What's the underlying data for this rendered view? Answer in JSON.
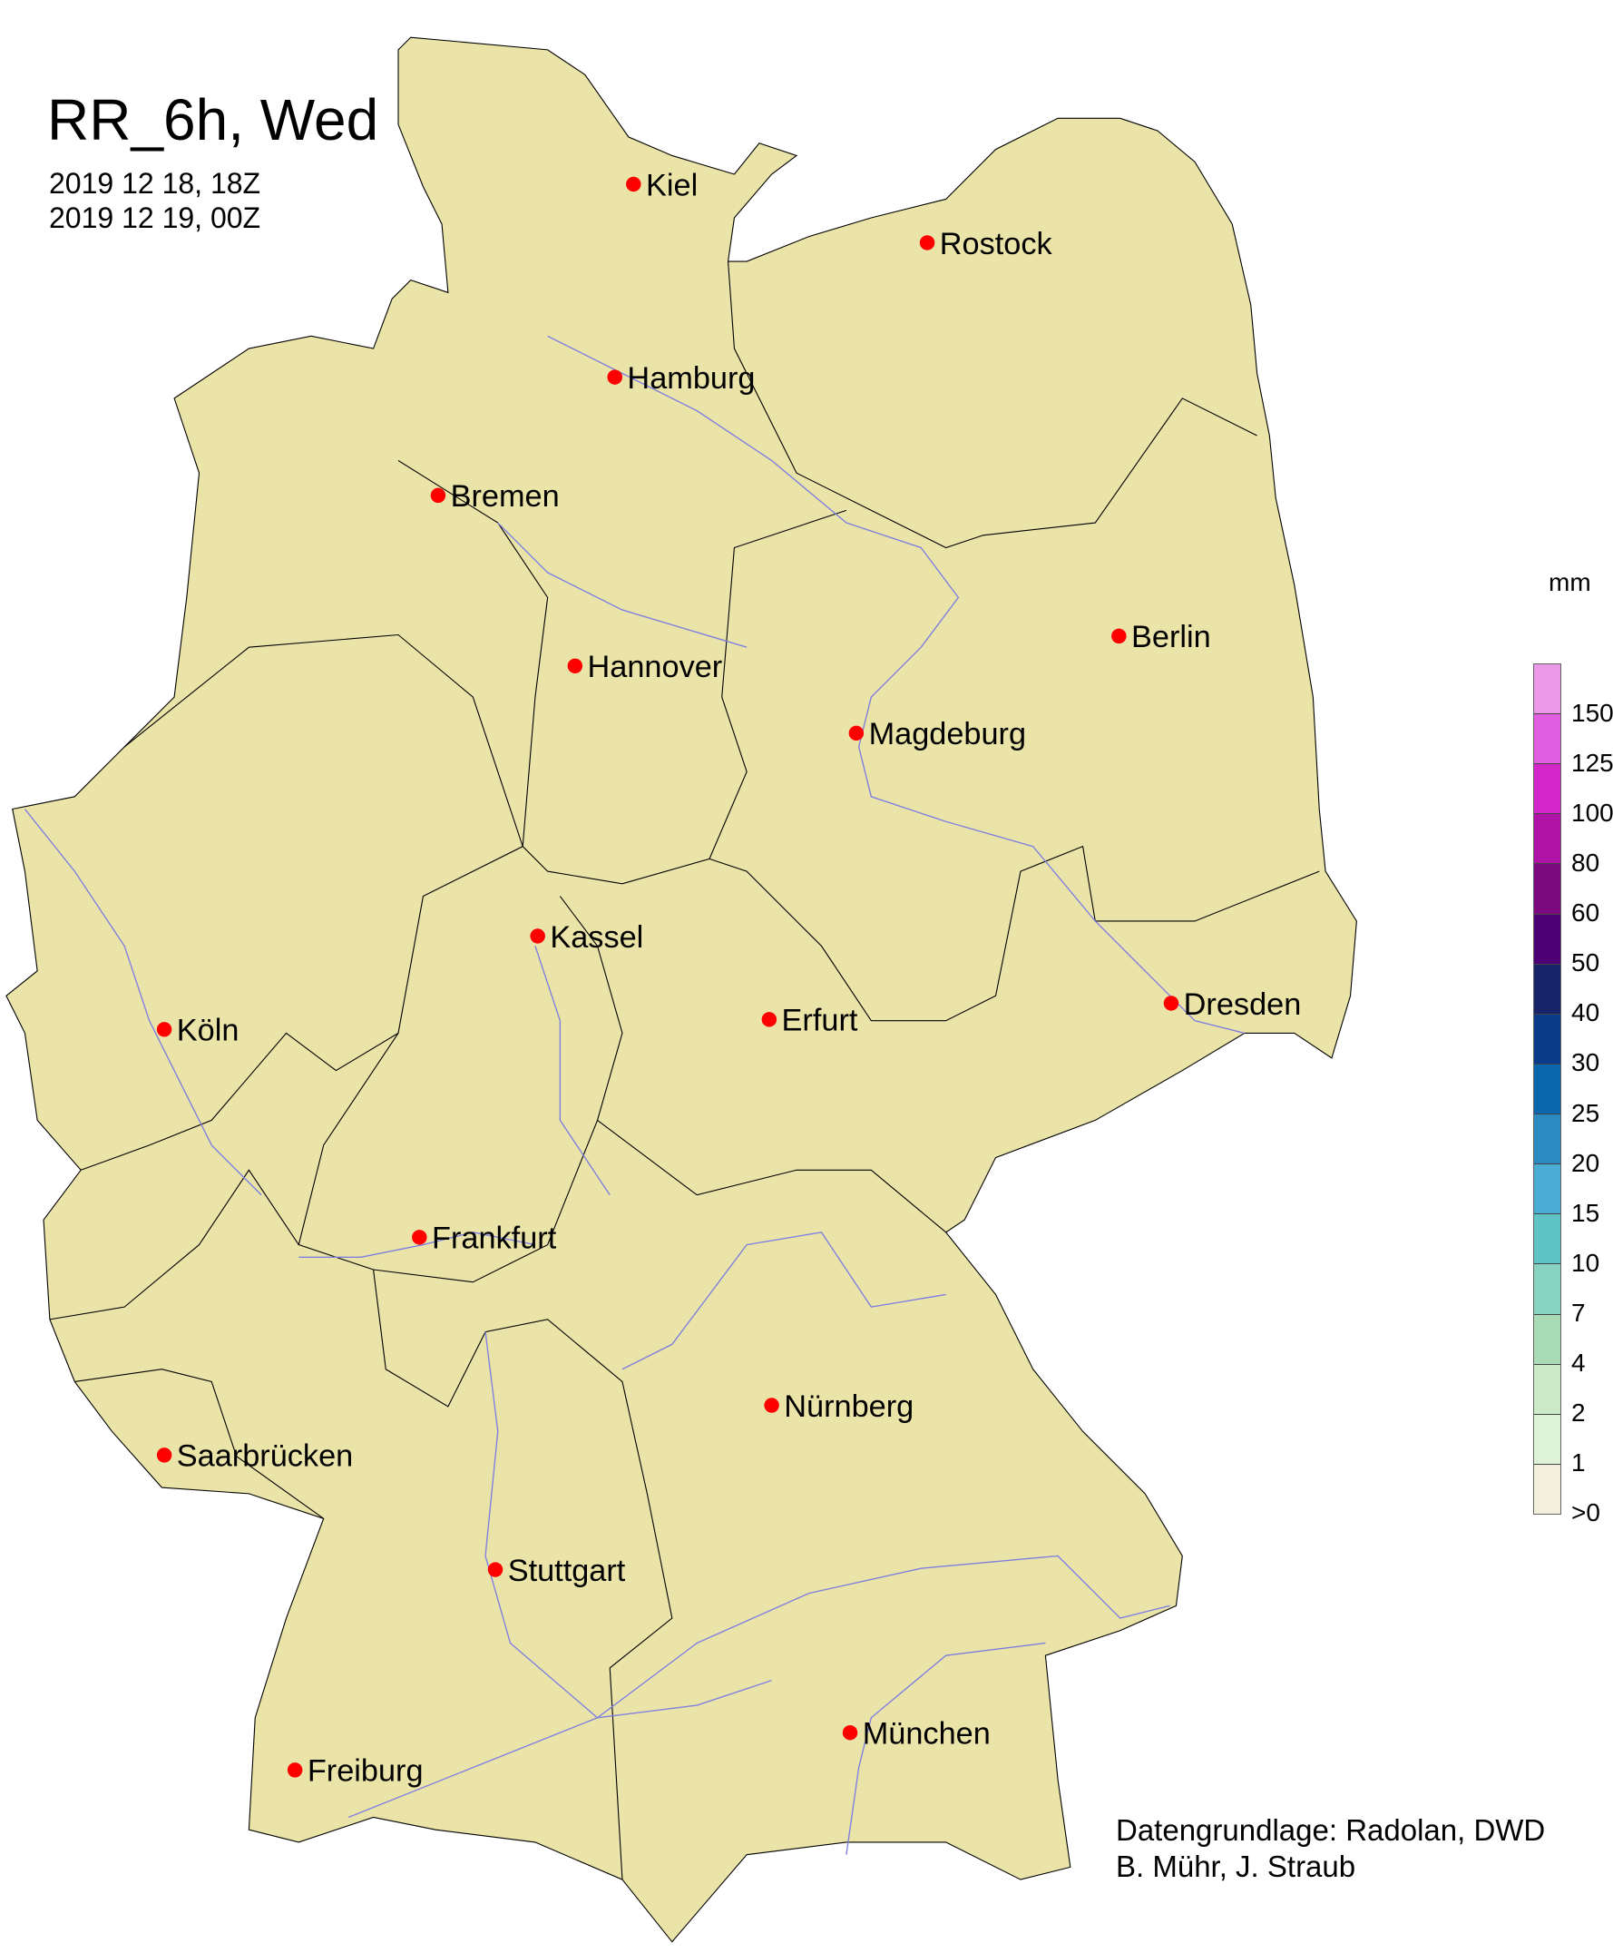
{
  "title": "RR_6h, Wed",
  "period_start": "2019 12 18, 18Z",
  "period_end": "2019 12 19, 00Z",
  "legend": {
    "unit": "mm",
    "labels": [
      ">0",
      "1",
      "2",
      "4",
      "7",
      "10",
      "15",
      "20",
      "25",
      "30",
      "40",
      "50",
      "60",
      "80",
      "100",
      "125",
      "150"
    ],
    "colors": [
      "#f2f0dc",
      "#def2d8",
      "#cce9c8",
      "#a9dcb6",
      "#88d3c0",
      "#5fc4c3",
      "#4aaed4",
      "#2b8ac0",
      "#0a66ad",
      "#0a3a8a",
      "#182468",
      "#4c0073",
      "#7c0a7e",
      "#ae12a6",
      "#d226c9",
      "#e15ee0",
      "#ec98e8"
    ]
  },
  "map": {
    "land_color": "#ebe4a9",
    "river_color": "#7f7fe0",
    "city_marker_color": "#ff0000",
    "cities": [
      {
        "name": "Kiel",
        "lon_lat": [
          10.13,
          54.32
        ]
      },
      {
        "name": "Rostock",
        "lon_lat": [
          12.1,
          54.09
        ]
      },
      {
        "name": "Hamburg",
        "lon_lat": [
          9.99,
          53.55
        ]
      },
      {
        "name": "Bremen",
        "lon_lat": [
          8.8,
          53.08
        ]
      },
      {
        "name": "Berlin",
        "lon_lat": [
          13.4,
          52.52
        ]
      },
      {
        "name": "Hannover",
        "lon_lat": [
          9.73,
          52.37
        ]
      },
      {
        "name": "Magdeburg",
        "lon_lat": [
          11.63,
          52.13
        ]
      },
      {
        "name": "Kassel",
        "lon_lat": [
          9.48,
          51.31
        ]
      },
      {
        "name": "Köln",
        "lon_lat": [
          6.96,
          50.94
        ]
      },
      {
        "name": "Erfurt",
        "lon_lat": [
          11.03,
          50.98
        ]
      },
      {
        "name": "Dresden",
        "lon_lat": [
          13.74,
          51.05
        ]
      },
      {
        "name": "Frankfurt",
        "lon_lat": [
          8.68,
          50.11
        ]
      },
      {
        "name": "Nürnberg",
        "lon_lat": [
          11.08,
          49.45
        ]
      },
      {
        "name": "Saarbrücken",
        "lon_lat": [
          7.0,
          49.24
        ]
      },
      {
        "name": "Stuttgart",
        "lon_lat": [
          9.18,
          48.78
        ]
      },
      {
        "name": "München",
        "lon_lat": [
          11.58,
          48.14
        ]
      },
      {
        "name": "Freiburg",
        "lon_lat": [
          7.85,
          47.99
        ]
      }
    ]
  },
  "credits": [
    "Datengrundlage: Radolan, DWD",
    "B. Mühr, J. Straub"
  ]
}
